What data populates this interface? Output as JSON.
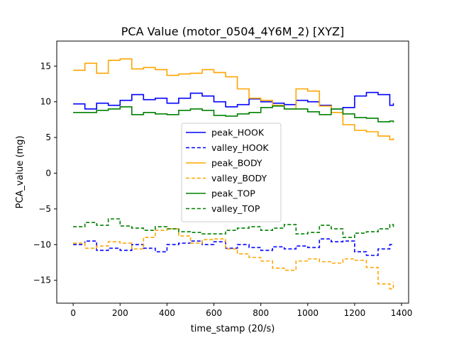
{
  "chart_data": {
    "type": "line",
    "title": "PCA Value (motor_0504_4Y6M_2) [XYZ]",
    "xlabel": "time_stamp (20/s)",
    "ylabel": "PCA_value (mg)",
    "xlim": [
      -70,
      1430
    ],
    "ylim": [
      -18.2,
      18.5
    ],
    "xticks": [
      0,
      200,
      400,
      600,
      800,
      1000,
      1200,
      1400
    ],
    "yticks": [
      -15,
      -10,
      -5,
      0,
      5,
      10,
      15
    ],
    "ytick_labels": [
      "−15",
      "−10",
      "−5",
      "0",
      "5",
      "10",
      "15"
    ],
    "grid": false,
    "legend_position": "center",
    "x": [
      0,
      50,
      100,
      150,
      200,
      250,
      300,
      350,
      400,
      450,
      500,
      550,
      600,
      650,
      700,
      750,
      800,
      850,
      900,
      950,
      1000,
      1050,
      1100,
      1150,
      1200,
      1250,
      1300,
      1350,
      1365
    ],
    "series": [
      {
        "name": "peak_HOOK",
        "color": "#0000ff",
        "style": "solid",
        "values": [
          9.7,
          9.0,
          9.8,
          9.5,
          10.2,
          11.0,
          10.3,
          10.5,
          9.8,
          10.5,
          11.2,
          10.8,
          10.0,
          9.3,
          9.6,
          10.4,
          10.0,
          9.8,
          9.6,
          10.2,
          10.0,
          9.5,
          9.0,
          9.2,
          10.8,
          11.3,
          11.0,
          9.5,
          9.8
        ]
      },
      {
        "name": "valley_HOOK",
        "color": "#0000ff",
        "style": "dashed",
        "values": [
          -10.0,
          -9.5,
          -10.8,
          -10.5,
          -10.8,
          -10.0,
          -10.5,
          -11.0,
          -10.0,
          -9.8,
          -9.5,
          -10.0,
          -9.6,
          -10.5,
          -10.0,
          -10.4,
          -10.8,
          -10.3,
          -10.6,
          -10.2,
          -10.4,
          -9.2,
          -9.6,
          -9.5,
          -11.0,
          -11.5,
          -10.6,
          -10.0,
          -10.1
        ]
      },
      {
        "name": "peak_BODY",
        "color": "#ffa500",
        "style": "solid",
        "values": [
          14.4,
          15.4,
          14.0,
          15.8,
          16.0,
          14.6,
          14.8,
          14.5,
          13.7,
          13.9,
          14.0,
          14.5,
          14.1,
          13.5,
          11.8,
          10.5,
          10.2,
          9.5,
          9.0,
          11.8,
          11.5,
          9.4,
          8.5,
          6.8,
          6.0,
          5.8,
          5.2,
          4.7,
          4.9
        ]
      },
      {
        "name": "valley_BODY",
        "color": "#ffa500",
        "style": "dashed",
        "values": [
          -9.8,
          -10.5,
          -10.2,
          -9.6,
          -9.8,
          -10.6,
          -9.0,
          -8.0,
          -7.8,
          -8.8,
          -9.8,
          -9.3,
          -9.2,
          -10.6,
          -11.3,
          -11.8,
          -12.3,
          -13.3,
          -13.6,
          -12.3,
          -12.0,
          -12.4,
          -12.6,
          -12.0,
          -12.2,
          -13.2,
          -15.5,
          -16.2,
          -15.2
        ]
      },
      {
        "name": "peak_TOP",
        "color": "#008000",
        "style": "solid",
        "values": [
          8.5,
          8.5,
          8.8,
          9.0,
          9.3,
          8.2,
          8.5,
          8.3,
          8.2,
          8.8,
          9.0,
          8.8,
          8.1,
          8.0,
          8.3,
          8.5,
          9.2,
          9.4,
          9.0,
          9.0,
          8.6,
          8.2,
          9.0,
          8.3,
          7.8,
          7.7,
          7.2,
          7.3,
          7.1
        ]
      },
      {
        "name": "valley_TOP",
        "color": "#008000",
        "style": "dashed",
        "values": [
          -7.5,
          -6.9,
          -7.3,
          -6.4,
          -7.4,
          -7.7,
          -8.0,
          -7.5,
          -7.8,
          -8.2,
          -8.3,
          -8.5,
          -8.5,
          -8.0,
          -7.7,
          -7.5,
          -8.0,
          -7.7,
          -7.2,
          -8.5,
          -8.3,
          -7.3,
          -7.8,
          -9.0,
          -8.4,
          -8.2,
          -7.8,
          -7.2,
          -7.6
        ]
      }
    ]
  }
}
